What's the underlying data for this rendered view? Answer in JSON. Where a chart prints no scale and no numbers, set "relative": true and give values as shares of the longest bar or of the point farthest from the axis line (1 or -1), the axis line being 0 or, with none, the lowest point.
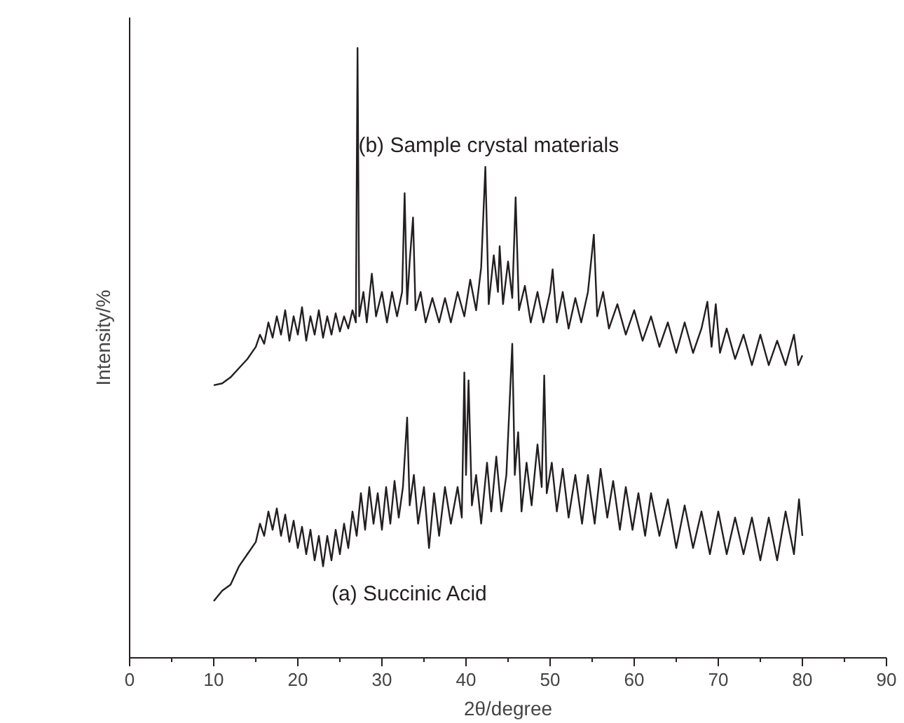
{
  "chart_data": {
    "type": "line",
    "relative": true,
    "xlabel": "2θ/degree",
    "ylabel": "Intensity/%",
    "xlim": [
      0,
      90
    ],
    "xticks": [
      0,
      10,
      20,
      30,
      40,
      50,
      60,
      70,
      80,
      90
    ],
    "grid": false,
    "marker": "none",
    "line_style": "solid",
    "series": [
      {
        "name": "(a) Succinic Acid",
        "color": "#231f20",
        "x": [
          10,
          11,
          12,
          13,
          14,
          15,
          15.5,
          16,
          16.5,
          17,
          17.5,
          18,
          18.5,
          19,
          19.5,
          20,
          20.5,
          21,
          21.5,
          22,
          22.5,
          23,
          23.5,
          24,
          24.5,
          25,
          25.5,
          26,
          26.5,
          27,
          27.5,
          28,
          28.5,
          29,
          29.5,
          30,
          30.5,
          31,
          31.5,
          32,
          32.5,
          33,
          33.3,
          33.8,
          34.3,
          35,
          35.6,
          36.2,
          36.8,
          37.5,
          38.2,
          39,
          39.5,
          39.8,
          40.0,
          40.3,
          40.7,
          41.2,
          41.8,
          42.5,
          43,
          43.6,
          44.2,
          44.8,
          45.5,
          45.8,
          46.2,
          46.6,
          47.2,
          47.8,
          48.5,
          49.0,
          49.3,
          49.6,
          50.2,
          50.8,
          51.5,
          52.2,
          53,
          53.8,
          54.5,
          55.3,
          56,
          56.8,
          57.5,
          58.3,
          59,
          59.8,
          60.5,
          61.3,
          62,
          63,
          64,
          65,
          66,
          67,
          68,
          69,
          70,
          71,
          72,
          73,
          74,
          75,
          76,
          77,
          78,
          79,
          79.6,
          80
        ],
        "values": [
          0.093,
          0.11,
          0.12,
          0.15,
          0.17,
          0.19,
          0.22,
          0.2,
          0.24,
          0.21,
          0.245,
          0.2,
          0.235,
          0.19,
          0.225,
          0.18,
          0.215,
          0.17,
          0.21,
          0.16,
          0.2,
          0.15,
          0.2,
          0.16,
          0.21,
          0.17,
          0.22,
          0.18,
          0.24,
          0.2,
          0.27,
          0.21,
          0.28,
          0.22,
          0.27,
          0.21,
          0.28,
          0.22,
          0.29,
          0.23,
          0.28,
          0.394,
          0.25,
          0.3,
          0.22,
          0.28,
          0.18,
          0.27,
          0.2,
          0.28,
          0.22,
          0.28,
          0.23,
          0.468,
          0.3,
          0.455,
          0.25,
          0.3,
          0.22,
          0.32,
          0.24,
          0.33,
          0.24,
          0.3,
          0.515,
          0.3,
          0.37,
          0.24,
          0.32,
          0.25,
          0.35,
          0.28,
          0.463,
          0.27,
          0.32,
          0.24,
          0.31,
          0.23,
          0.3,
          0.22,
          0.3,
          0.22,
          0.31,
          0.23,
          0.29,
          0.21,
          0.28,
          0.21,
          0.27,
          0.2,
          0.27,
          0.2,
          0.26,
          0.18,
          0.25,
          0.18,
          0.24,
          0.17,
          0.24,
          0.17,
          0.23,
          0.17,
          0.23,
          0.16,
          0.23,
          0.16,
          0.24,
          0.17,
          0.26,
          0.2
        ]
      },
      {
        "name": "(b) Sample crystal materials",
        "color": "#231f20",
        "x": [
          10,
          11,
          12,
          13,
          14,
          15,
          15.5,
          16,
          16.5,
          17,
          17.5,
          18,
          18.5,
          19,
          19.5,
          20,
          20.5,
          21,
          21.5,
          22,
          22.5,
          23,
          23.5,
          24,
          24.5,
          25,
          25.5,
          26,
          26.5,
          26.9,
          27.1,
          27.3,
          27.8,
          28.2,
          28.8,
          29.3,
          30,
          30.6,
          31.2,
          31.8,
          32.4,
          32.7,
          33.0,
          33.3,
          33.7,
          34.0,
          34.6,
          35.2,
          36,
          36.8,
          37.5,
          38.2,
          39,
          39.8,
          40.5,
          41.2,
          41.8,
          42.3,
          42.7,
          43.3,
          43.8,
          44.0,
          44.4,
          45.0,
          45.5,
          45.9,
          46.3,
          47,
          47.7,
          48.5,
          49.2,
          50,
          50.3,
          50.8,
          51.5,
          52.2,
          53,
          53.7,
          54.5,
          55.2,
          55.6,
          56.3,
          57,
          58,
          59,
          60,
          61,
          62,
          63,
          64,
          65,
          66,
          67,
          68,
          68.7,
          69.2,
          69.7,
          70.2,
          71,
          72,
          73,
          74,
          75,
          76,
          77,
          78,
          79,
          79.5,
          80
        ],
        "values": [
          0.447,
          0.45,
          0.46,
          0.475,
          0.49,
          0.51,
          0.53,
          0.515,
          0.55,
          0.525,
          0.56,
          0.53,
          0.57,
          0.52,
          0.56,
          0.53,
          0.575,
          0.52,
          0.56,
          0.53,
          0.57,
          0.525,
          0.56,
          0.53,
          0.565,
          0.535,
          0.56,
          0.54,
          0.57,
          0.55,
          1.0,
          0.56,
          0.6,
          0.55,
          0.63,
          0.56,
          0.6,
          0.55,
          0.6,
          0.56,
          0.6,
          0.762,
          0.58,
          0.65,
          0.722,
          0.57,
          0.6,
          0.55,
          0.59,
          0.55,
          0.59,
          0.55,
          0.6,
          0.56,
          0.62,
          0.57,
          0.64,
          0.805,
          0.58,
          0.66,
          0.6,
          0.675,
          0.58,
          0.65,
          0.59,
          0.755,
          0.57,
          0.61,
          0.55,
          0.6,
          0.55,
          0.6,
          0.637,
          0.55,
          0.6,
          0.54,
          0.59,
          0.55,
          0.6,
          0.694,
          0.56,
          0.6,
          0.54,
          0.58,
          0.53,
          0.57,
          0.52,
          0.56,
          0.51,
          0.55,
          0.5,
          0.55,
          0.5,
          0.54,
          0.584,
          0.51,
          0.58,
          0.5,
          0.54,
          0.49,
          0.53,
          0.48,
          0.53,
          0.48,
          0.52,
          0.48,
          0.53,
          0.48,
          0.496
        ]
      }
    ]
  }
}
